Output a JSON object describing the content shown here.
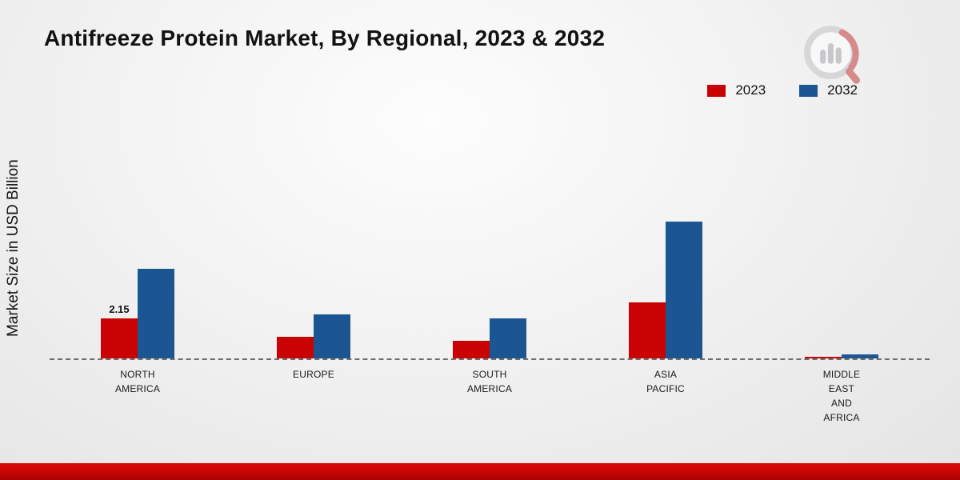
{
  "title": "Antifreeze Protein Market, By Regional, 2023 & 2032",
  "ylabel": "Market Size in USD Billion",
  "legend": {
    "items": [
      {
        "label": "2023",
        "color": "#c90303"
      },
      {
        "label": "2032",
        "color": "#1b5693"
      }
    ]
  },
  "chart_data": {
    "type": "bar",
    "title": "Antifreeze Protein Market, By Regional, 2023 & 2032",
    "xlabel": "",
    "ylabel": "Market Size in USD Billion",
    "categories": [
      "NORTH AMERICA",
      "EUROPE",
      "SOUTH AMERICA",
      "ASIA PACIFIC",
      "MIDDLE EAST AND AFRICA"
    ],
    "category_lines": [
      [
        "NORTH",
        "AMERICA"
      ],
      [
        "EUROPE"
      ],
      [
        "SOUTH",
        "AMERICA"
      ],
      [
        "ASIA",
        "PACIFIC"
      ],
      [
        "MIDDLE",
        "EAST",
        "AND",
        "AFRICA"
      ]
    ],
    "series": [
      {
        "name": "2023",
        "color": "#c90303",
        "values": [
          2.15,
          1.15,
          0.95,
          3.0,
          0.08
        ]
      },
      {
        "name": "2032",
        "color": "#1b5693",
        "values": [
          4.8,
          2.35,
          2.15,
          7.35,
          0.2
        ]
      }
    ],
    "data_labels": [
      {
        "series": "2023",
        "category": "NORTH AMERICA",
        "text": "2.15"
      }
    ],
    "ylim": [
      0,
      8
    ],
    "gridlines": false,
    "baseline_style": "dashed",
    "legend_position": "top-right"
  },
  "footer": {
    "color": "#c70505"
  }
}
